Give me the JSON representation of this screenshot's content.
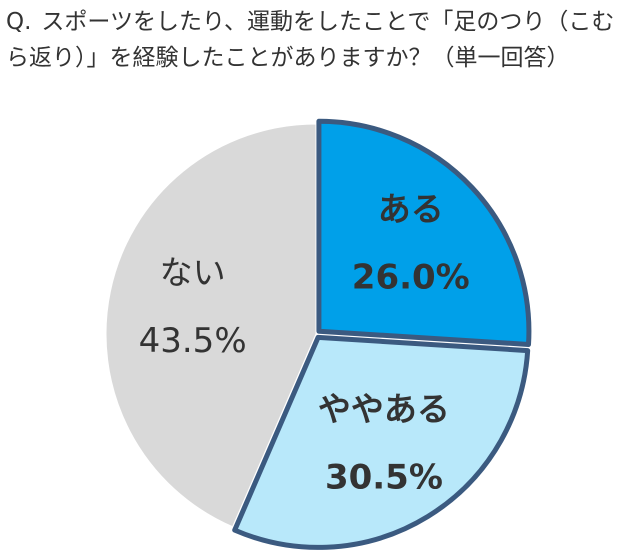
{
  "question": {
    "prefix": "Q.",
    "text": "スポーツをしたり、運動をしたことで「足のつり（こむら返り）」を経験したことがありますか？（単一回答）"
  },
  "chart_data": {
    "type": "pie",
    "title": "",
    "start_angle_deg": 0,
    "direction": "clockwise",
    "slices": [
      {
        "label": "ある",
        "value": 26.0,
        "display": "26.0%",
        "color": "#00a0e9",
        "emphasized": true,
        "bold": true
      },
      {
        "label": "ややある",
        "value": 30.5,
        "display": "30.5%",
        "color": "#b8e8fa",
        "emphasized": true,
        "bold": true
      },
      {
        "label": "ない",
        "value": 43.5,
        "display": "43.5%",
        "color": "#d9d9d9",
        "emphasized": false,
        "bold": false
      }
    ],
    "emphasis_outline_color": "#3b5a80",
    "label_text_color": "#333333"
  }
}
